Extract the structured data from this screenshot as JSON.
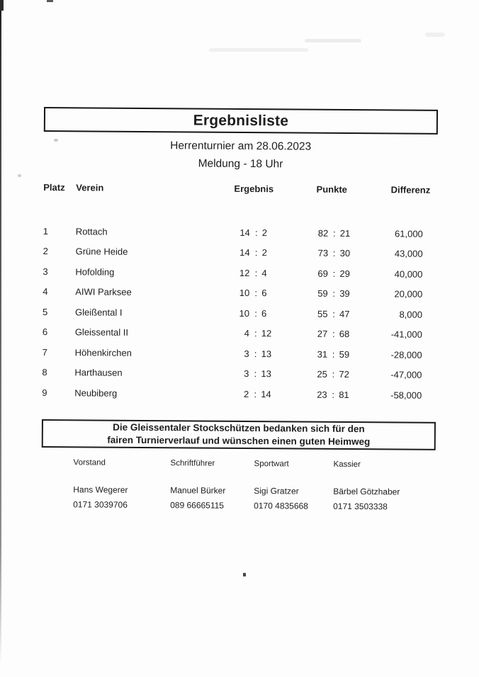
{
  "page": {
    "title": "Ergebnisliste",
    "subtitle_line1": "Herrenturnier am 28.06.2023",
    "subtitle_line2": "Meldung - 18 Uhr"
  },
  "table": {
    "headers": {
      "platz": "Platz",
      "verein": "Verein",
      "ergebnis": "Ergebnis",
      "punkte": "Punkte",
      "differenz": "Differenz"
    },
    "score_separator": ":",
    "rows": [
      {
        "platz": "1",
        "verein": "Rottach",
        "ergebnis_fuer": "14",
        "ergebnis_gegen": "2",
        "punkte_fuer": "82",
        "punkte_gegen": "21",
        "differenz": "61,000"
      },
      {
        "platz": "2",
        "verein": "Grüne Heide",
        "ergebnis_fuer": "14",
        "ergebnis_gegen": "2",
        "punkte_fuer": "73",
        "punkte_gegen": "30",
        "differenz": "43,000"
      },
      {
        "platz": "3",
        "verein": "Hofolding",
        "ergebnis_fuer": "12",
        "ergebnis_gegen": "4",
        "punkte_fuer": "69",
        "punkte_gegen": "29",
        "differenz": "40,000"
      },
      {
        "platz": "4",
        "verein": "AIWI Parksee",
        "ergebnis_fuer": "10",
        "ergebnis_gegen": "6",
        "punkte_fuer": "59",
        "punkte_gegen": "39",
        "differenz": "20,000"
      },
      {
        "platz": "5",
        "verein": "Gleißental I",
        "ergebnis_fuer": "10",
        "ergebnis_gegen": "6",
        "punkte_fuer": "55",
        "punkte_gegen": "47",
        "differenz": "8,000"
      },
      {
        "platz": "6",
        "verein": "Gleissental II",
        "ergebnis_fuer": "4",
        "ergebnis_gegen": "12",
        "punkte_fuer": "27",
        "punkte_gegen": "68",
        "differenz": "-41,000"
      },
      {
        "platz": "7",
        "verein": "Höhenkirchen",
        "ergebnis_fuer": "3",
        "ergebnis_gegen": "13",
        "punkte_fuer": "31",
        "punkte_gegen": "59",
        "differenz": "-28,000"
      },
      {
        "platz": "8",
        "verein": "Harthausen",
        "ergebnis_fuer": "3",
        "ergebnis_gegen": "13",
        "punkte_fuer": "25",
        "punkte_gegen": "72",
        "differenz": "-47,000"
      },
      {
        "platz": "9",
        "verein": "Neubiberg",
        "ergebnis_fuer": "2",
        "ergebnis_gegen": "14",
        "punkte_fuer": "23",
        "punkte_gegen": "81",
        "differenz": "-58,000"
      }
    ]
  },
  "thanks_box": {
    "line1": "Die Gleissentaler Stockschützen bedanken sich für den",
    "line2": "fairen Turnierverlauf und wünschen einen guten Heimweg"
  },
  "contacts": [
    {
      "role": "Vorstand",
      "name": "Hans Wegerer",
      "phone": "0171 3039706"
    },
    {
      "role": "Schriftführer",
      "name": "Manuel Bürker",
      "phone": "089 66665115"
    },
    {
      "role": "Sportwart",
      "name": "Sigi Gratzer",
      "phone": "0170 4835668"
    },
    {
      "role": "Kassier",
      "name": "Bärbel Götzhaber",
      "phone": "0171 3503338"
    }
  ],
  "colors": {
    "ink": "#1d1d1d",
    "paper": "#fdfdfd",
    "border": "#161616"
  }
}
